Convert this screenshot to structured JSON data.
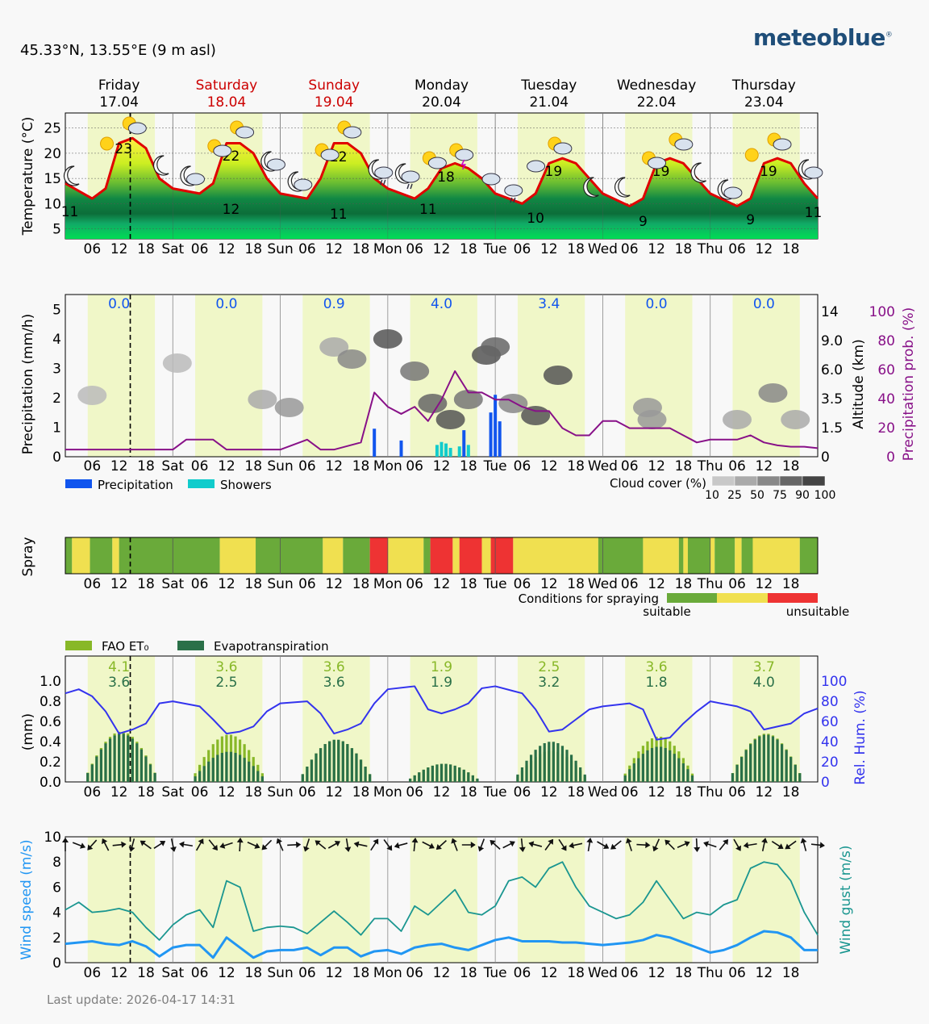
{
  "header": {
    "location": "45.33°N, 13.55°E (9 m asl)",
    "brand": "meteoblue",
    "brand_mark": "®",
    "last_update": "Last update: 2026-04-17 14:31"
  },
  "days": [
    {
      "name": "Friday",
      "date": "17.04",
      "weekend": false,
      "short": "Fri",
      "temp_max": "23",
      "temp_min": "11",
      "precip": "0.0",
      "fao": "4.1",
      "evapo": "3.6"
    },
    {
      "name": "Saturday",
      "date": "18.04",
      "weekend": true,
      "short": "Sat",
      "temp_max": "22",
      "temp_min": "12",
      "precip": "0.0",
      "fao": "3.6",
      "evapo": "2.5"
    },
    {
      "name": "Sunday",
      "date": "19.04",
      "weekend": true,
      "short": "Sun",
      "temp_max": "22",
      "temp_min": "11",
      "precip": "0.9",
      "fao": "3.6",
      "evapo": "3.6"
    },
    {
      "name": "Monday",
      "date": "20.04",
      "weekend": false,
      "short": "Mon",
      "temp_max": "18",
      "temp_min": "11",
      "precip": "4.0",
      "fao": "1.9",
      "evapo": "1.9"
    },
    {
      "name": "Tuesday",
      "date": "21.04",
      "weekend": false,
      "short": "Tue",
      "temp_max": "19",
      "temp_min": "10",
      "precip": "3.4",
      "fao": "2.5",
      "evapo": "3.2"
    },
    {
      "name": "Wednesday",
      "date": "22.04",
      "weekend": false,
      "short": "Wed",
      "temp_max": "19",
      "temp_min": "9",
      "precip": "0.0",
      "fao": "3.6",
      "evapo": "1.8"
    },
    {
      "name": "Thursday",
      "date": "23.04",
      "weekend": false,
      "short": "Thu",
      "temp_max": "19",
      "temp_min": "9",
      "precip": "0.0",
      "fao": "3.7",
      "evapo": "4.0"
    }
  ],
  "hour_ticks": [
    "06",
    "12",
    "18"
  ],
  "last_day_end_min": "11",
  "colors": {
    "weekend_red": "#cc0000",
    "day_band": "#f0f7c8",
    "temp_line": "#e00000",
    "precip": "#1155ee",
    "showers": "#11cccc",
    "prob": "#881188",
    "hum": "#3333ee",
    "fao": "#88b828",
    "evapo": "#2a7048",
    "wind": "#2196f3",
    "gust": "#1a9690",
    "suitable": "#6aaa3a",
    "fair": "#f0e050",
    "unsuitable": "#ee3333"
  },
  "chart_data": [
    {
      "type": "line",
      "title": "",
      "ylabel": "Temperature (°C)",
      "ylim": [
        3,
        28
      ],
      "yticks": [
        5,
        10,
        15,
        20,
        25
      ],
      "x_unit": "hours since Friday 00:00",
      "series": [
        {
          "name": "",
          "x": [
            0,
            6,
            9,
            12,
            15,
            18,
            21,
            24,
            30,
            33,
            36,
            39,
            42,
            45,
            48,
            54,
            57,
            60,
            63,
            66,
            69,
            72,
            78,
            81,
            84,
            87,
            90,
            93,
            96,
            102,
            105,
            108,
            111,
            114,
            117,
            120,
            126,
            129,
            132,
            135,
            138,
            141,
            144,
            150,
            153,
            156,
            159,
            162,
            165,
            168
          ],
          "values": [
            14,
            11,
            13,
            22,
            23,
            21,
            15,
            13,
            12,
            14,
            22,
            22,
            20,
            15,
            12,
            11,
            15,
            22,
            22,
            20,
            15,
            13,
            11,
            13,
            17,
            18,
            17,
            15,
            12,
            10,
            12,
            18,
            19,
            18,
            15,
            12,
            9.5,
            11,
            18,
            19,
            18,
            15,
            12,
            9.5,
            11,
            18,
            19,
            18,
            14,
            11
          ]
        }
      ]
    },
    {
      "type": "bar",
      "title": "",
      "ylabel": "Precipitation (mm/h)",
      "ylim": [
        0,
        5.5
      ],
      "yticks": [
        0,
        1,
        2,
        3,
        4,
        5
      ],
      "y2label": "Altitude (km)",
      "y2ticks": [
        "0",
        "1.5",
        "3.5",
        "6.0",
        "9.0",
        "14"
      ],
      "y3label": "Precipitation prob. (%)",
      "y3ticks": [
        0,
        20,
        40,
        60,
        80,
        100
      ],
      "legend": [
        "Precipitation",
        "Showers"
      ],
      "cloud_legend_title": "Cloud cover (%)",
      "cloud_legend_ticks": [
        "10",
        "25",
        "50",
        "75",
        "90",
        "100"
      ],
      "precip_bars": [
        {
          "x": 69,
          "v": 0.95
        },
        {
          "x": 75,
          "v": 0.55
        },
        {
          "x": 89,
          "v": 0.9
        },
        {
          "x": 95,
          "v": 1.5
        },
        {
          "x": 96,
          "v": 2.1
        },
        {
          "x": 97,
          "v": 1.2
        }
      ],
      "shower_bars": [
        {
          "x": 83,
          "v": 0.4
        },
        {
          "x": 84,
          "v": 0.5
        },
        {
          "x": 85,
          "v": 0.45
        },
        {
          "x": 86,
          "v": 0.3
        },
        {
          "x": 88,
          "v": 0.35
        },
        {
          "x": 90,
          "v": 0.4
        }
      ],
      "prob_x": [
        0,
        24,
        27,
        33,
        36,
        42,
        48,
        54,
        57,
        60,
        66,
        69,
        72,
        75,
        78,
        81,
        84,
        87,
        90,
        93,
        96,
        99,
        102,
        105,
        108,
        111,
        114,
        117,
        120,
        123,
        126,
        129,
        132,
        135,
        138,
        141,
        144,
        147,
        150,
        153,
        156,
        159,
        162,
        165,
        168
      ],
      "prob_values": [
        5,
        5,
        12,
        12,
        5,
        5,
        5,
        12,
        5,
        5,
        10,
        45,
        35,
        30,
        35,
        25,
        40,
        60,
        45,
        45,
        40,
        40,
        35,
        32,
        32,
        20,
        15,
        15,
        25,
        25,
        20,
        20,
        20,
        20,
        15,
        10,
        12,
        12,
        12,
        15,
        10,
        8,
        7,
        7,
        6
      ]
    },
    {
      "type": "heatmap",
      "title": "",
      "ylabel": "Spray",
      "legend_title": "Conditions for spraying",
      "legend_left": "suitable",
      "legend_right": "unsuitable",
      "segments": [
        [
          "s",
          0,
          1.5
        ],
        [
          "f",
          1.5,
          5.5
        ],
        [
          "s",
          5.5,
          10.5
        ],
        [
          "f",
          10.5,
          12
        ],
        [
          "s",
          12,
          24
        ],
        [
          "s",
          24,
          34.5
        ],
        [
          "f",
          34.5,
          42.5
        ],
        [
          "s",
          42.5,
          57.5
        ],
        [
          "f",
          57.5,
          62
        ],
        [
          "s",
          62,
          68
        ],
        [
          "u",
          68,
          72
        ],
        [
          "f",
          72,
          80
        ],
        [
          "s",
          80,
          81.5
        ],
        [
          "u",
          81.5,
          86.5
        ],
        [
          "f",
          86.5,
          88
        ],
        [
          "u",
          88,
          93
        ],
        [
          "f",
          93,
          95
        ],
        [
          "u",
          95,
          100
        ],
        [
          "f",
          100,
          119
        ],
        [
          "s",
          119,
          129
        ],
        [
          "f",
          129,
          137
        ],
        [
          "s",
          137,
          138
        ],
        [
          "f",
          138,
          139
        ],
        [
          "s",
          139,
          144
        ],
        [
          "f",
          144,
          145
        ],
        [
          "s",
          145,
          149.5
        ],
        [
          "f",
          149.5,
          151
        ],
        [
          "s",
          151,
          153.5
        ],
        [
          "f",
          153.5,
          164
        ],
        [
          "s",
          164,
          168
        ]
      ]
    },
    {
      "type": "bar",
      "title": "",
      "ylabel": "(mm)",
      "ylim": [
        0,
        1.25
      ],
      "yticks": [
        "0.0",
        "0.2",
        "0.4",
        "0.6",
        "0.8",
        "1.0"
      ],
      "y2label": "Rel. Hum. (%)",
      "y2ticks": [
        0,
        20,
        40,
        60,
        80,
        100
      ],
      "legend": [
        "FAO ET₀",
        "Evapotranspiration"
      ],
      "hum_x": [
        0,
        3,
        6,
        9,
        12,
        15,
        18,
        21,
        24,
        30,
        33,
        36,
        39,
        42,
        45,
        48,
        54,
        57,
        60,
        63,
        66,
        69,
        72,
        78,
        81,
        84,
        87,
        90,
        93,
        96,
        102,
        105,
        108,
        111,
        114,
        117,
        120,
        126,
        129,
        132,
        135,
        138,
        141,
        144,
        150,
        153,
        156,
        159,
        162,
        165,
        168
      ],
      "hum_values": [
        88,
        92,
        85,
        70,
        48,
        52,
        58,
        78,
        80,
        75,
        62,
        48,
        50,
        55,
        70,
        78,
        80,
        68,
        48,
        52,
        58,
        78,
        92,
        95,
        72,
        68,
        72,
        78,
        93,
        95,
        88,
        72,
        50,
        52,
        62,
        72,
        75,
        78,
        72,
        42,
        44,
        58,
        70,
        80,
        75,
        70,
        52,
        55,
        58,
        68,
        73
      ],
      "fao_daily": [
        0.5,
        0.47,
        0.42,
        0.18,
        0.31,
        0.45,
        0.48
      ],
      "evapo_daily": [
        0.48,
        0.3,
        0.42,
        0.18,
        0.4,
        0.35,
        0.47
      ]
    },
    {
      "type": "line",
      "title": "",
      "ylabel": "Wind speed (m/s)",
      "y2label": "Wind gust (m/s)",
      "ylim": [
        0,
        10
      ],
      "yticks": [
        0,
        2,
        4,
        6,
        8,
        10
      ],
      "series": [
        {
          "name": "",
          "x": [
            0,
            3,
            6,
            9,
            12,
            15,
            18,
            21,
            24,
            27,
            30,
            33,
            36,
            39,
            42,
            45,
            48,
            51,
            54,
            57,
            60,
            63,
            66,
            69,
            72,
            75,
            78,
            81,
            84,
            87,
            90,
            93,
            96,
            99,
            102,
            105,
            108,
            111,
            114,
            117,
            120,
            123,
            126,
            129,
            132,
            135,
            138,
            141,
            144,
            147,
            150,
            153,
            156,
            159,
            162,
            165,
            168
          ],
          "values": [
            1.5,
            1.6,
            1.7,
            1.5,
            1.4,
            1.7,
            1.3,
            0.5,
            1.2,
            1.4,
            1.4,
            0.4,
            2.0,
            1.2,
            0.4,
            0.9,
            1.0,
            1.0,
            1.2,
            0.6,
            1.2,
            1.2,
            0.5,
            0.9,
            1.0,
            0.7,
            1.2,
            1.4,
            1.5,
            1.2,
            1.0,
            1.4,
            1.8,
            2.0,
            1.7,
            1.7,
            1.7,
            1.6,
            1.6,
            1.5,
            1.4,
            1.5,
            1.6,
            1.8,
            2.2,
            2.0,
            1.6,
            1.2,
            0.8,
            1.0,
            1.4,
            2.0,
            2.5,
            2.4,
            2.0,
            1.0,
            1.0
          ]
        },
        {
          "name": "",
          "x": [
            0,
            3,
            6,
            9,
            12,
            15,
            18,
            21,
            24,
            27,
            30,
            33,
            36,
            39,
            42,
            45,
            48,
            51,
            54,
            57,
            60,
            63,
            66,
            69,
            72,
            75,
            78,
            81,
            84,
            87,
            90,
            93,
            96,
            99,
            102,
            105,
            108,
            111,
            114,
            117,
            120,
            123,
            126,
            129,
            132,
            135,
            138,
            141,
            144,
            147,
            150,
            153,
            156,
            159,
            162,
            165,
            168
          ],
          "values": [
            4.2,
            4.8,
            4.0,
            4.1,
            4.3,
            4.0,
            2.8,
            1.8,
            3.0,
            3.8,
            4.2,
            2.8,
            6.5,
            6.0,
            2.5,
            2.8,
            2.9,
            2.8,
            2.3,
            3.2,
            4.1,
            3.2,
            2.2,
            3.5,
            3.5,
            2.5,
            4.5,
            3.8,
            4.8,
            5.8,
            4.0,
            3.8,
            4.5,
            6.5,
            6.8,
            6.0,
            7.5,
            8.0,
            6.0,
            4.5,
            4.0,
            3.5,
            3.8,
            4.8,
            6.5,
            5.0,
            3.5,
            4.0,
            3.8,
            4.6,
            5.0,
            7.5,
            8.0,
            7.8,
            6.5,
            4.0,
            2.2
          ]
        }
      ]
    }
  ]
}
